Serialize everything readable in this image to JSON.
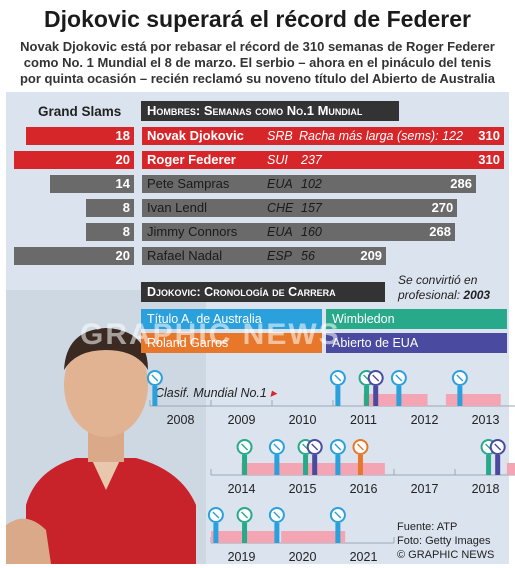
{
  "header": {
    "title": "Djokovic superará el récord de Federer",
    "subtitle_lines": [
      "Novak Djokovic está por rebasar el récord de 310 semanas de Roger Federer",
      "como No. 1 Mundial el 8 de marzo. El serbio – ahora en el pináculo del tenis",
      "por quinta ocasión – recién reclamó su noveno título del Abierto de Australia"
    ]
  },
  "colors": {
    "accent_red": "#d7262a",
    "grey": "#6a6a6a",
    "dark": "#333333",
    "panel": "#dbe4ee",
    "australia": "#2aa0dc",
    "roland_garros": "#e7772b",
    "wimbledon": "#27a98a",
    "us_open": "#4a4aa0",
    "rank1_band": "#f3a5b3"
  },
  "chart_data": [
    {
      "type": "bar",
      "title": "Hombres: Semanas como No.1 Mundial",
      "grand_slams_header": "Grand Slams",
      "unit_note": "Racha más larga (sems): 122",
      "players": [
        {
          "name": "Novak Djokovic",
          "country": "SRB",
          "grand_slams": 18,
          "weeks": 310,
          "highlight": true,
          "note_value": ""
        },
        {
          "name": "Roger Federer",
          "country": "SUI",
          "grand_slams": 20,
          "weeks": 310,
          "highlight": true,
          "note_value": "237"
        },
        {
          "name": "Pete Sampras",
          "country": "EUA",
          "grand_slams": 14,
          "weeks": 286,
          "highlight": false,
          "note_value": "102"
        },
        {
          "name": "Ivan Lendl",
          "country": "CHE",
          "grand_slams": 8,
          "weeks": 270,
          "highlight": false,
          "note_value": "157"
        },
        {
          "name": "Jimmy Connors",
          "country": "EUA",
          "grand_slams": 8,
          "weeks": 268,
          "highlight": false,
          "note_value": "160"
        },
        {
          "name": "Rafael Nadal",
          "country": "ESP",
          "grand_slams": 20,
          "weeks": 209,
          "highlight": false,
          "note_value": "56"
        }
      ]
    },
    {
      "type": "timeline",
      "title": "Djokovic: Cronología de Carrera",
      "pro_note": "Se convirtió en",
      "pro_note2": "profesional:",
      "pro_year": "2003",
      "legend": [
        {
          "name": "Título A. de Australia",
          "key": "australia"
        },
        {
          "name": "Wimbledon",
          "key": "wimbledon"
        },
        {
          "name": "Roland Garros",
          "key": "roland_garros"
        },
        {
          "name": "Abierto de EUA",
          "key": "us_open"
        }
      ],
      "rank_label": "Clasif. Mundial No.1",
      "years": [
        "2008",
        "2009",
        "2010",
        "2011",
        "2012",
        "2013",
        "2014",
        "2015",
        "2016",
        "2017",
        "2018",
        "2019",
        "2020",
        "2021"
      ],
      "titles": [
        {
          "year": 2008,
          "t": 0.08,
          "slam": "australia"
        },
        {
          "year": 2011,
          "t": 0.08,
          "slam": "australia"
        },
        {
          "year": 2011,
          "t": 0.55,
          "slam": "wimbledon"
        },
        {
          "year": 2011,
          "t": 0.7,
          "slam": "us_open"
        },
        {
          "year": 2012,
          "t": 0.08,
          "slam": "australia"
        },
        {
          "year": 2013,
          "t": 0.08,
          "slam": "australia"
        },
        {
          "year": 2014,
          "t": 0.55,
          "slam": "wimbledon"
        },
        {
          "year": 2015,
          "t": 0.08,
          "slam": "australia"
        },
        {
          "year": 2015,
          "t": 0.55,
          "slam": "wimbledon"
        },
        {
          "year": 2015,
          "t": 0.7,
          "slam": "us_open"
        },
        {
          "year": 2016,
          "t": 0.08,
          "slam": "australia"
        },
        {
          "year": 2016,
          "t": 0.45,
          "slam": "roland_garros"
        },
        {
          "year": 2018,
          "t": 0.55,
          "slam": "wimbledon"
        },
        {
          "year": 2018,
          "t": 0.7,
          "slam": "us_open"
        },
        {
          "year": 2019,
          "t": 0.08,
          "slam": "australia"
        },
        {
          "year": 2019,
          "t": 0.55,
          "slam": "wimbledon"
        },
        {
          "year": 2020,
          "t": 0.08,
          "slam": "australia"
        },
        {
          "year": 2021,
          "t": 0.08,
          "slam": "australia"
        }
      ],
      "rank1_periods": [
        {
          "start": 2011.5,
          "end": 2012.55
        },
        {
          "start": 2012.85,
          "end": 2013.75
        },
        {
          "start": 2014.5,
          "end": 2016.85
        },
        {
          "start": 2018.85,
          "end": 2020.1
        },
        {
          "start": 2020.15,
          "end": 2021.2
        }
      ]
    }
  ],
  "footer": {
    "source": "Fuente: ATP",
    "photo": "Foto: Getty Images",
    "brand": "© GRAPHIC NEWS"
  },
  "watermark": "GRAPHIC NEWS"
}
